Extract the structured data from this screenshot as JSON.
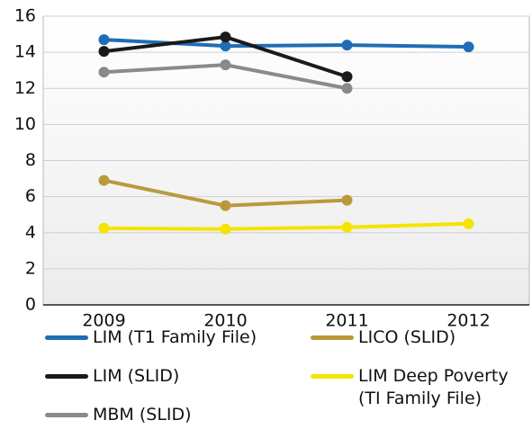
{
  "chart_data": {
    "type": "line",
    "categories": [
      "2009",
      "2010",
      "2011",
      "2012"
    ],
    "series": [
      {
        "name": "LIM (T1 Family File)",
        "color": "#1f6db5",
        "values": [
          14.7,
          14.35,
          14.4,
          14.3
        ]
      },
      {
        "name": "LICO (SLID)",
        "color": "#b99a3b",
        "values": [
          6.9,
          5.5,
          5.8,
          null
        ]
      },
      {
        "name": "LIM (SLID)",
        "color": "#1a1a1a",
        "values": [
          14.05,
          14.85,
          12.65,
          null
        ]
      },
      {
        "name": "LIM Deep Poverty (TI Family File)",
        "color": "#f5e400",
        "values": [
          4.25,
          4.2,
          4.3,
          4.5
        ]
      },
      {
        "name": "MBM (SLID)",
        "color": "#8a8a8a",
        "values": [
          12.9,
          13.3,
          12.0,
          null
        ]
      }
    ],
    "ylim": [
      0,
      16
    ],
    "yticks": [
      0,
      2,
      4,
      6,
      8,
      10,
      12,
      14,
      16
    ],
    "grid": true,
    "legend": "bottom"
  }
}
